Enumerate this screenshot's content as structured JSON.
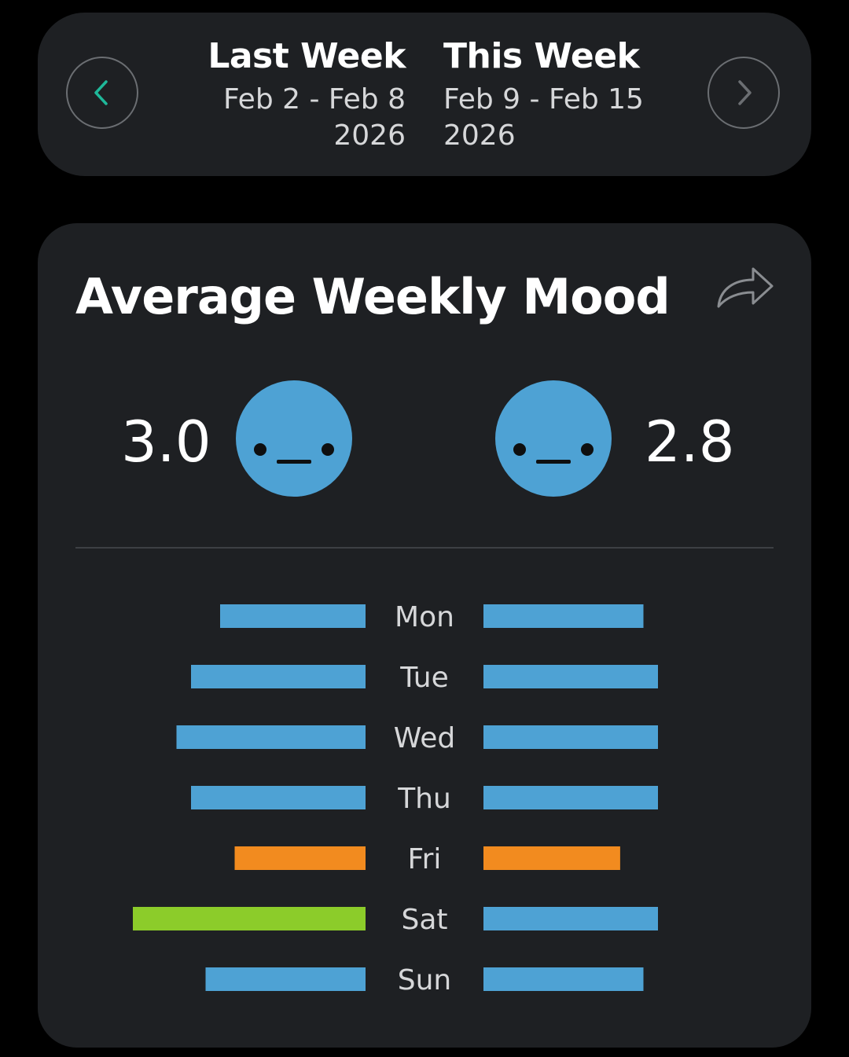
{
  "weeks": {
    "last": {
      "title": "Last Week",
      "range": "Feb 2 - Feb 8",
      "year": "2026"
    },
    "this": {
      "title": "This Week",
      "range": "Feb 9 - Feb 15",
      "year": "2026"
    }
  },
  "nav": {
    "prev_icon": "chevron-left-icon",
    "next_icon": "chevron-right-icon"
  },
  "card": {
    "title": "Average Weekly Mood",
    "share_icon": "share-icon",
    "last_week_score": "3.0",
    "this_week_score": "2.8",
    "face_icon": "neutral-face-icon"
  },
  "colors": {
    "background": "#000000",
    "card": "#1e2023",
    "accent": "#1fb89a",
    "neutral": "#4ea2d4",
    "low": "#f28b1f",
    "high": "#8ccc2a"
  },
  "chart_data": {
    "type": "bar",
    "orientation": "butterfly-horizontal",
    "categories": [
      "Mon",
      "Tue",
      "Wed",
      "Thu",
      "Fri",
      "Sat",
      "Sun"
    ],
    "scale_max": 5,
    "series": [
      {
        "values": [
          2.5,
          3.0,
          3.25,
          3.0,
          2.25,
          4.0,
          2.75
        ],
        "colors": [
          "#4ea2d4",
          "#4ea2d4",
          "#4ea2d4",
          "#4ea2d4",
          "#f28b1f",
          "#8ccc2a",
          "#4ea2d4"
        ]
      },
      {
        "values": [
          2.75,
          3.0,
          3.0,
          3.0,
          2.35,
          3.0,
          2.75
        ],
        "colors": [
          "#4ea2d4",
          "#4ea2d4",
          "#4ea2d4",
          "#4ea2d4",
          "#f28b1f",
          "#4ea2d4",
          "#4ea2d4"
        ]
      }
    ]
  }
}
